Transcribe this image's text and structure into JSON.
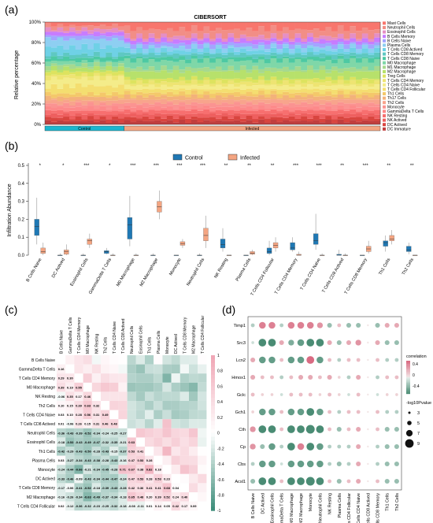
{
  "panel_labels": {
    "a": "(a)",
    "b": "(b)",
    "c": "(c)",
    "d": "(d)"
  },
  "chart_data": [
    {
      "panel": "a",
      "type": "bar",
      "title": "CIBERSORT",
      "ylabel": "Relative percentage",
      "ytick_labels": [
        "0%",
        "20%",
        "40%",
        "60%",
        "80%",
        "100%"
      ],
      "groups": [
        {
          "label": "Control",
          "count": 13,
          "color": "#1bb6cf"
        },
        {
          "label": "Infected",
          "count": 42,
          "color": "#f4a582"
        }
      ],
      "cell_types": [
        "Mast Cells",
        "Neutrophil Cells",
        "Eosinophil Cells",
        "B Cells Memory",
        "B Cells Naive",
        "Plasma Cells",
        "T Cells CD8 Actived",
        "T Cells CD8 Memory",
        "T Cells CD8 Naive",
        "M0 Macrophage",
        "M1 Macrophage",
        "M2 Macrophage",
        "Treg Cells",
        "T Cells CD4 Memory",
        "T Cells CD4 Naive",
        "T Cells CD4 Follicular",
        "Th1 Cells",
        "Th17 Cells",
        "Th2 Cells",
        "Monocyte",
        "GammaDelta T Cells",
        "NK Resting",
        "NK Actived",
        "DC Actived",
        "DC Immature"
      ],
      "colors": [
        "#f8766d",
        "#f28e86",
        "#e58fc4",
        "#c77cff",
        "#a3a5ff",
        "#8ecff2",
        "#6fd1e6",
        "#5ec8c2",
        "#4dc9a3",
        "#7fd7a8",
        "#a6d98f",
        "#b7e16b",
        "#dde35f",
        "#eee472",
        "#f4ec8a",
        "#f4de70",
        "#f4c86a",
        "#f3b27a",
        "#f8a48c",
        "#fb9391",
        "#fd8a8a",
        "#f76f6f",
        "#ee5f5f",
        "#d9453f",
        "#c13e3e"
      ]
    },
    {
      "panel": "b",
      "type": "box",
      "ylabel": "Infiltration Abundance",
      "yticks": [
        0.0,
        0.1,
        0.2,
        0.3,
        0.4,
        0.5
      ],
      "ylim": [
        0,
        0.5
      ],
      "legend": [
        "Control",
        "Infected"
      ],
      "colors": {
        "Control": "#1f78b4",
        "Infected": "#f4a582"
      },
      "categories": [
        "B Cells Naive",
        "DC Actived",
        "Eosinophil Cells",
        "GammaDelta T Cells",
        "M0 Macrophage",
        "M2 Macrophage",
        "Monocyte",
        "Neutrophil Cells",
        "NK Resting",
        "Plasma Cells",
        "T Cells CD4 Follicular",
        "T Cells CD4 Memory",
        "T Cells CD4 Naive",
        "T Cells CD8 Actived",
        "T Cells CD8 Memory",
        "Th1 Cells",
        "Th2 Cells"
      ],
      "significance": [
        "*",
        "*",
        "***",
        "*",
        "***",
        "***",
        "***",
        "***",
        "**",
        "**",
        "**",
        "***",
        "***",
        "**",
        "***",
        "**",
        "**"
      ],
      "control": [
        [
          0.06,
          0.11,
          0.16,
          0.2,
          0.32
        ],
        [
          0,
          0,
          0,
          0,
          0.01
        ],
        [
          0,
          0,
          0,
          0,
          0.01
        ],
        [
          0.005,
          0.01,
          0.02,
          0.025,
          0.04
        ],
        [
          0.05,
          0.09,
          0.17,
          0.21,
          0.33
        ],
        [
          0,
          0,
          0,
          0,
          0.01
        ],
        [
          0,
          0,
          0,
          0,
          0
        ],
        [
          0,
          0,
          0,
          0,
          0.01
        ],
        [
          0.02,
          0.04,
          0.06,
          0.09,
          0.15
        ],
        [
          0,
          0,
          0,
          0,
          0
        ],
        [
          0,
          0.01,
          0.02,
          0.04,
          0.08
        ],
        [
          0.02,
          0.03,
          0.04,
          0.07,
          0.1
        ],
        [
          0.03,
          0.06,
          0.08,
          0.12,
          0.23
        ],
        [
          0,
          0,
          0,
          0.005,
          0.03
        ],
        [
          0,
          0,
          0,
          0,
          0
        ],
        [
          0.02,
          0.05,
          0.07,
          0.08,
          0.11
        ],
        [
          0.005,
          0.02,
          0.03,
          0.05,
          0.07
        ]
      ],
      "infected": [
        [
          0,
          0.01,
          0.02,
          0.04,
          0.07
        ],
        [
          0,
          0.005,
          0.02,
          0.03,
          0.06
        ],
        [
          0.04,
          0.06,
          0.08,
          0.09,
          0.12
        ],
        [
          0,
          0,
          0,
          0,
          0.01
        ],
        [
          0,
          0,
          0,
          0,
          0.01
        ],
        [
          0.2,
          0.24,
          0.27,
          0.3,
          0.36
        ],
        [
          0.04,
          0.055,
          0.065,
          0.075,
          0.09
        ],
        [
          0.04,
          0.08,
          0.11,
          0.15,
          0.22
        ],
        [
          0,
          0,
          0,
          0,
          0
        ],
        [
          0,
          0.005,
          0.01,
          0.02,
          0.03
        ],
        [
          0.02,
          0.04,
          0.055,
          0.07,
          0.1
        ],
        [
          0,
          0,
          0,
          0.005,
          0.02
        ],
        [
          0,
          0,
          0,
          0,
          0.01
        ],
        [
          0,
          0,
          0,
          0,
          0.01
        ],
        [
          0.01,
          0.02,
          0.035,
          0.05,
          0.08
        ],
        [
          0.06,
          0.08,
          0.09,
          0.11,
          0.14
        ],
        [
          0,
          0,
          0,
          0,
          0
        ]
      ]
    },
    {
      "panel": "c",
      "type": "heatmap",
      "labels": [
        "B Cells Naive",
        "GammaDelta T Cells",
        "T Cells CD4 Memory",
        "M0 Macrophage",
        "NK Resting",
        "Th2 Cells",
        "T Cells CD4 Naive",
        "T Cells CD8 Actived",
        "Neutrophil Cells",
        "Eosinophil Cells",
        "Th1 Cells",
        "Plasma Cells",
        "Monocyte",
        "DC Actived",
        "T Cells CD8 Memory",
        "M2 Macrophage",
        "T Cells CD4 Follicular"
      ],
      "rows": [
        [
          0.16
        ],
        [
          0.29,
          0.3
        ],
        [
          0.39,
          0.19,
          0.55
        ],
        [
          -0.06,
          0.35,
          0.17,
          0.46
        ],
        [
          0.1,
          0.15,
          0.39,
          0.63,
          0.32
        ],
        [
          0.03,
          0.1,
          0.28,
          0.56,
          0.31,
          0.49
        ],
        [
          0.01,
          -0.06,
          0.26,
          0.15,
          0.31,
          0.46,
          0.48
        ],
        [
          -0.36,
          -0.43,
          -0.39,
          -0.52,
          -0.34,
          -0.24,
          -0.25,
          -0.27
        ],
        [
          -0.18,
          -0.53,
          -0.43,
          -0.49,
          -0.47,
          -0.32,
          -0.35,
          -0.21,
          0.63
        ],
        [
          -0.42,
          -0.29,
          -0.43,
          -0.5,
          -0.28,
          -0.43,
          -0.15,
          -0.37,
          0.53,
          0.41
        ],
        [
          0.03,
          -0.27,
          -0.34,
          -0.43,
          -0.38,
          -0.28,
          -0.43,
          -0.16,
          0.47,
          0.53,
          0.28
        ],
        [
          -0.24,
          -0.44,
          -0.66,
          -0.21,
          -0.34,
          -0.45,
          -0.28,
          0.71,
          0.67,
          0.38,
          0.82,
          0.18
        ],
        [
          -0.33,
          -0.46,
          -0.09,
          -0.43,
          -0.34,
          -0.44,
          -0.47,
          -0.24,
          0.47,
          0.53,
          0.28,
          0.53,
          0.23
        ],
        [
          -0.17,
          -0.06,
          -0.41,
          -0.52,
          -0.18,
          -0.39,
          -0.43,
          -0.28,
          0.42,
          0.36,
          0.41,
          0.41,
          0.68,
          0.04
        ],
        [
          -0.16,
          -0.26,
          -0.34,
          -0.63,
          -0.49,
          -0.37,
          -0.34,
          -0.18,
          0.65,
          0.48,
          0.2,
          0.39,
          0.52,
          0.24,
          0.4
        ],
        [
          0.02,
          -0.12,
          -0.36,
          -0.32,
          -0.23,
          -0.25,
          -0.32,
          -0.18,
          -0.08,
          -0.11,
          0.01,
          0.14,
          0.05,
          0.42,
          0.17,
          0.09
        ]
      ],
      "colorbar_ticks": [
        "1",
        "0.8",
        "0.6",
        "0.4",
        "0.2",
        "0",
        "-0.2",
        "-0.4",
        "-0.6",
        "-0.8",
        "-1"
      ]
    },
    {
      "panel": "d",
      "type": "scatter",
      "ylabels": [
        "Timp1",
        "Src3",
        "Lcn2",
        "Hmox1",
        "Gclc",
        "Gch1",
        "Cth",
        "Cp",
        "Cbs",
        "Acsl1"
      ],
      "xlabels": [
        "B Cells Naive",
        "DC Actived",
        "Eosinophil Cells",
        "GammaDelta T Cells",
        "M0 Macrophage",
        "M2 Macrophage",
        "Monocyte",
        "Neutrophil Cells",
        "NK Resting",
        "Plasma Cells",
        "T Cells CD4 Follicular",
        "T Cells CD4 Naive",
        "T Cells CD8 Actived",
        "T Cells CD8 Memory",
        "Th1 Cells",
        "Th2 Cells"
      ],
      "correlation": [
        [
          -0.2,
          0.5,
          0.5,
          -0.2,
          0.5,
          0.5,
          0.5,
          0.4,
          -0.3,
          0.2,
          -0.3,
          -0.3,
          0,
          -0.3,
          0.3,
          0.3
        ],
        [
          -0.1,
          -0.6,
          -0.6,
          0.3,
          -0.4,
          -0.5,
          -0.6,
          -0.6,
          0.3,
          -0.3,
          0.3,
          0.4,
          0,
          0.3,
          -0.3,
          -0.3
        ],
        [
          0.3,
          -0.5,
          -0.5,
          0.2,
          -0.5,
          -0.5,
          0.6,
          -0.5,
          0.2,
          -0.2,
          0.2,
          0.2,
          0,
          0.2,
          -0.2,
          -0.2
        ],
        [
          0.3,
          0.2,
          0.2,
          -0.2,
          0.2,
          0.3,
          0.3,
          0.2,
          0.3,
          0.1,
          -0.2,
          0.3,
          0,
          -0.2,
          0.2,
          0.2
        ],
        [
          0.2,
          0.1,
          0.1,
          -0.1,
          0.2,
          0.2,
          0.2,
          0.1,
          0.2,
          0.1,
          -0.1,
          0.2,
          0,
          -0.1,
          0.1,
          0.1
        ],
        [
          0.1,
          -0.5,
          -0.5,
          0.2,
          -0.5,
          -0.5,
          -0.6,
          -0.5,
          0.2,
          -0.2,
          0.2,
          0.2,
          0,
          0.2,
          -0.2,
          -0.2
        ],
        [
          0.4,
          -0.6,
          -0.6,
          0.2,
          -0.6,
          -0.6,
          -0.7,
          -0.6,
          0.2,
          -0.3,
          0.2,
          0.3,
          0,
          0.2,
          -0.3,
          -0.3
        ],
        [
          0.4,
          -0.3,
          -0.5,
          -0.2,
          -0.6,
          0.5,
          -0.6,
          -0.5,
          -0.2,
          -0.2,
          -0.2,
          0.3,
          0,
          -0.2,
          -0.3,
          -0.3
        ],
        [
          -0.2,
          -0.5,
          -0.5,
          -0.1,
          -0.5,
          -0.5,
          -0.5,
          -0.5,
          -0.2,
          -0.3,
          -0.2,
          0.3,
          0,
          -0.2,
          -0.3,
          -0.3
        ],
        [
          -0.3,
          -0.6,
          -0.6,
          0.2,
          -0.6,
          -0.6,
          -0.7,
          -0.6,
          0.2,
          -0.3,
          0.2,
          0.3,
          0,
          0.2,
          -0.3,
          -0.3
        ]
      ],
      "legend_correlation_title": "correlation",
      "legend_correlation_ticks": [
        "0.4",
        "0",
        "-0.4"
      ],
      "legend_size_title": "-log10Pvalue",
      "legend_size_ticks": [
        "3",
        "5",
        "7",
        "9"
      ]
    }
  ]
}
